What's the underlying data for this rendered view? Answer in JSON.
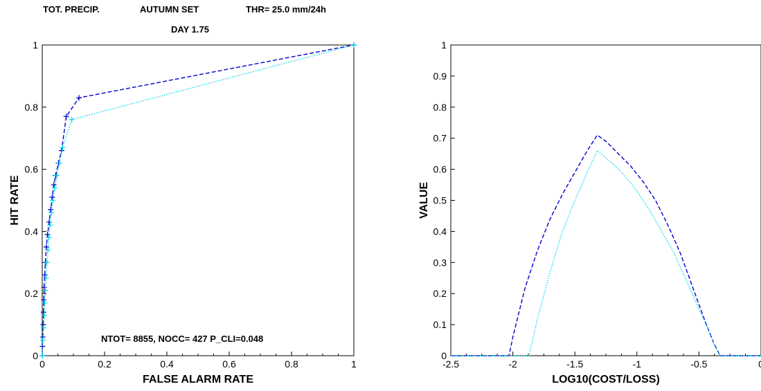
{
  "header": {
    "field": "TOT. PRECIP.",
    "set": "AUTUMN SET",
    "threshold": "THR=  25.0 mm/24h",
    "day": "DAY  1.75"
  },
  "colors": {
    "series_a": "#0000cc",
    "series_b": "#00d8e8",
    "axis": "#000000"
  },
  "chart_data": [
    {
      "type": "line",
      "title": "",
      "xlabel": "FALSE ALARM RATE",
      "ylabel": "HIT RATE",
      "xlim": [
        0,
        1
      ],
      "ylim": [
        0,
        1
      ],
      "xticks": [
        {
          "v": 0,
          "label": "0"
        },
        {
          "v": 0.2,
          "label": "0.2"
        },
        {
          "v": 0.4,
          "label": "0.4"
        },
        {
          "v": 0.6,
          "label": "0.6"
        },
        {
          "v": 0.8,
          "label": "0.8"
        },
        {
          "v": 1,
          "label": "1"
        }
      ],
      "yticks": [
        {
          "v": 0,
          "label": "0"
        },
        {
          "v": 0.2,
          "label": "0.2"
        },
        {
          "v": 0.4,
          "label": "0.4"
        },
        {
          "v": 0.6,
          "label": "0.6"
        },
        {
          "v": 0.8,
          "label": "0.8"
        },
        {
          "v": 1,
          "label": "1"
        }
      ],
      "annotation": "NTOT=  8855, NOCC=   427     P_CLI=0.048",
      "series": [
        {
          "style": "dashed",
          "color": "#0000cc",
          "marker": "+",
          "x": [
            0,
            0.001,
            0.002,
            0.003,
            0.004,
            0.005,
            0.006,
            0.008,
            0.01,
            0.013,
            0.017,
            0.022,
            0.027,
            0.032,
            0.037,
            0.043,
            0.052,
            0.062,
            0.077,
            0.118,
            1
          ],
          "y": [
            0,
            0.03,
            0.06,
            0.1,
            0.14,
            0.18,
            0.22,
            0.26,
            0.3,
            0.35,
            0.39,
            0.43,
            0.47,
            0.51,
            0.55,
            0.58,
            0.62,
            0.66,
            0.77,
            0.83,
            1
          ]
        },
        {
          "style": "dotted",
          "color": "#00d8e8",
          "marker": "+",
          "x": [
            0,
            0.002,
            0.004,
            0.006,
            0.008,
            0.01,
            0.012,
            0.015,
            0.018,
            0.021,
            0.025,
            0.029,
            0.034,
            0.04,
            0.047,
            0.055,
            0.065,
            0.095,
            1
          ],
          "y": [
            0,
            0.05,
            0.09,
            0.13,
            0.17,
            0.21,
            0.25,
            0.3,
            0.34,
            0.38,
            0.42,
            0.46,
            0.5,
            0.54,
            0.58,
            0.62,
            0.67,
            0.76,
            1
          ]
        }
      ]
    },
    {
      "type": "line",
      "title": "",
      "xlabel": "LOG10(COST/LOSS)",
      "ylabel": "VALUE",
      "xlim": [
        -2.5,
        0
      ],
      "ylim": [
        0,
        1
      ],
      "xticks": [
        {
          "v": -2.5,
          "label": "-2.5"
        },
        {
          "v": -2,
          "label": "-2"
        },
        {
          "v": -1.5,
          "label": "-1.5"
        },
        {
          "v": -1,
          "label": "-1"
        },
        {
          "v": -0.5,
          "label": "-0.5"
        },
        {
          "v": 0,
          "label": "0"
        }
      ],
      "yticks": [
        {
          "v": 0,
          "label": "0"
        },
        {
          "v": 0.1,
          "label": "0.1"
        },
        {
          "v": 0.2,
          "label": "0.2"
        },
        {
          "v": 0.3,
          "label": "0.3"
        },
        {
          "v": 0.4,
          "label": "0.4"
        },
        {
          "v": 0.5,
          "label": "0.5"
        },
        {
          "v": 0.6,
          "label": "0.6"
        },
        {
          "v": 0.7,
          "label": "0.7"
        },
        {
          "v": 0.8,
          "label": "0.8"
        },
        {
          "v": 0.9,
          "label": "0.9"
        },
        {
          "v": 1,
          "label": "1"
        }
      ],
      "series": [
        {
          "style": "dashed",
          "color": "#0000cc",
          "x": [
            -2.5,
            -2.03,
            -2.0,
            -1.9,
            -1.8,
            -1.7,
            -1.6,
            -1.5,
            -1.4,
            -1.32,
            -1.25,
            -1.15,
            -1.05,
            -0.95,
            -0.85,
            -0.75,
            -0.65,
            -0.55,
            -0.45,
            -0.38,
            -0.33,
            -0.3,
            0
          ],
          "y": [
            0,
            0,
            0.06,
            0.22,
            0.34,
            0.44,
            0.52,
            0.59,
            0.66,
            0.71,
            0.69,
            0.65,
            0.61,
            0.56,
            0.5,
            0.42,
            0.33,
            0.22,
            0.11,
            0.04,
            0.0,
            0,
            0
          ]
        },
        {
          "style": "dotted",
          "color": "#00d8e8",
          "x": [
            -2.5,
            -1.87,
            -1.8,
            -1.7,
            -1.6,
            -1.5,
            -1.4,
            -1.32,
            -1.2,
            -1.1,
            -1.0,
            -0.9,
            -0.8,
            -0.7,
            -0.6,
            -0.5,
            -0.42,
            -0.37,
            -0.33,
            0
          ],
          "y": [
            0,
            0,
            0.12,
            0.27,
            0.4,
            0.5,
            0.59,
            0.66,
            0.62,
            0.58,
            0.53,
            0.47,
            0.4,
            0.33,
            0.24,
            0.15,
            0.08,
            0.03,
            0.0,
            0
          ]
        }
      ]
    }
  ]
}
